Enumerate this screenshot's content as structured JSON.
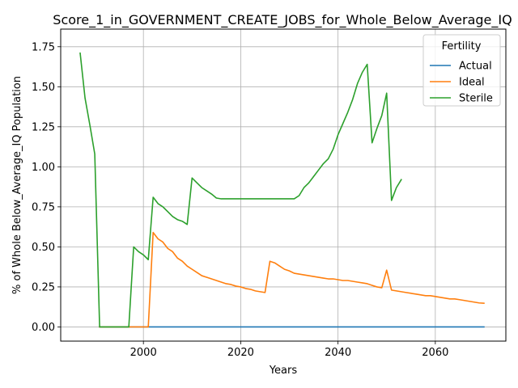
{
  "chart_data": {
    "type": "line",
    "title": "Score_1_in_GOVERNMENT_CREATE_JOBS_for_Whole_Below_Average_IQ",
    "xlabel": "Years",
    "ylabel": "% of Whole Below_Average_IQ Population",
    "xlim": [
      1983,
      2074.5
    ],
    "ylim": [
      -0.0886,
      1.86
    ],
    "x_ticks": [
      2000,
      2020,
      2040,
      2060
    ],
    "x_tick_labels": [
      "2000",
      "2020",
      "2040",
      "2060"
    ],
    "y_ticks": [
      0.0,
      0.25,
      0.5,
      0.75,
      1.0,
      1.25,
      1.5,
      1.75
    ],
    "y_tick_labels": [
      "0.00",
      "0.25",
      "0.50",
      "0.75",
      "1.00",
      "1.25",
      "1.50",
      "1.75"
    ],
    "grid": true,
    "legend": {
      "title": "Fertility",
      "placement": "top-right"
    },
    "series": [
      {
        "name": "Actual",
        "color": "#1f77b4",
        "points": [
          [
            1991,
            0.0
          ],
          [
            2070,
            0.0
          ]
        ]
      },
      {
        "name": "Ideal",
        "color": "#ff7f0e",
        "points": [
          [
            1991,
            0.0
          ],
          [
            2000,
            0.0
          ],
          [
            2001,
            0.0
          ],
          [
            2002,
            0.59
          ],
          [
            2003,
            0.55
          ],
          [
            2004,
            0.53
          ],
          [
            2005,
            0.49
          ],
          [
            2006,
            0.47
          ],
          [
            2007,
            0.43
          ],
          [
            2008,
            0.41
          ],
          [
            2009,
            0.38
          ],
          [
            2010,
            0.36
          ],
          [
            2011,
            0.34
          ],
          [
            2012,
            0.32
          ],
          [
            2013,
            0.31
          ],
          [
            2014,
            0.3
          ],
          [
            2015,
            0.29
          ],
          [
            2016,
            0.28
          ],
          [
            2017,
            0.27
          ],
          [
            2018,
            0.265
          ],
          [
            2019,
            0.255
          ],
          [
            2020,
            0.25
          ],
          [
            2021,
            0.24
          ],
          [
            2022,
            0.235
          ],
          [
            2023,
            0.225
          ],
          [
            2024,
            0.22
          ],
          [
            2025,
            0.215
          ],
          [
            2026,
            0.41
          ],
          [
            2027,
            0.4
          ],
          [
            2028,
            0.38
          ],
          [
            2029,
            0.36
          ],
          [
            2030,
            0.35
          ],
          [
            2031,
            0.335
          ],
          [
            2032,
            0.33
          ],
          [
            2033,
            0.325
          ],
          [
            2034,
            0.32
          ],
          [
            2035,
            0.315
          ],
          [
            2036,
            0.31
          ],
          [
            2037,
            0.305
          ],
          [
            2038,
            0.3
          ],
          [
            2039,
            0.3
          ],
          [
            2040,
            0.295
          ],
          [
            2041,
            0.29
          ],
          [
            2042,
            0.29
          ],
          [
            2043,
            0.285
          ],
          [
            2044,
            0.28
          ],
          [
            2045,
            0.275
          ],
          [
            2046,
            0.27
          ],
          [
            2047,
            0.26
          ],
          [
            2048,
            0.25
          ],
          [
            2049,
            0.245
          ],
          [
            2050,
            0.355
          ],
          [
            2051,
            0.23
          ],
          [
            2052,
            0.225
          ],
          [
            2053,
            0.22
          ],
          [
            2054,
            0.215
          ],
          [
            2055,
            0.21
          ],
          [
            2056,
            0.205
          ],
          [
            2057,
            0.2
          ],
          [
            2058,
            0.195
          ],
          [
            2059,
            0.195
          ],
          [
            2060,
            0.19
          ],
          [
            2061,
            0.185
          ],
          [
            2062,
            0.18
          ],
          [
            2063,
            0.175
          ],
          [
            2064,
            0.175
          ],
          [
            2065,
            0.17
          ],
          [
            2066,
            0.165
          ],
          [
            2067,
            0.16
          ],
          [
            2068,
            0.155
          ],
          [
            2069,
            0.15
          ],
          [
            2070,
            0.148
          ]
        ]
      },
      {
        "name": "Sterile",
        "color": "#2ca02c",
        "points": [
          [
            1987,
            1.71
          ],
          [
            1988,
            1.43
          ],
          [
            1989,
            1.26
          ],
          [
            1990,
            1.08
          ],
          [
            1991,
            0.0
          ],
          [
            1996,
            0.0
          ],
          [
            1997,
            0.0
          ],
          [
            1998,
            0.5
          ],
          [
            1999,
            0.47
          ],
          [
            2000,
            0.45
          ],
          [
            2001,
            0.42
          ],
          [
            2002,
            0.81
          ],
          [
            2003,
            0.77
          ],
          [
            2004,
            0.75
          ],
          [
            2005,
            0.72
          ],
          [
            2006,
            0.69
          ],
          [
            2007,
            0.67
          ],
          [
            2008,
            0.66
          ],
          [
            2009,
            0.64
          ],
          [
            2010,
            0.93
          ],
          [
            2011,
            0.9
          ],
          [
            2012,
            0.87
          ],
          [
            2013,
            0.85
          ],
          [
            2014,
            0.83
          ],
          [
            2015,
            0.805
          ],
          [
            2016,
            0.8
          ],
          [
            2020,
            0.8
          ],
          [
            2025,
            0.8
          ],
          [
            2031,
            0.8
          ],
          [
            2032,
            0.82
          ],
          [
            2033,
            0.87
          ],
          [
            2034,
            0.9
          ],
          [
            2035,
            0.94
          ],
          [
            2036,
            0.98
          ],
          [
            2037,
            1.02
          ],
          [
            2038,
            1.05
          ],
          [
            2039,
            1.11
          ],
          [
            2040,
            1.2
          ],
          [
            2041,
            1.27
          ],
          [
            2042,
            1.34
          ],
          [
            2043,
            1.42
          ],
          [
            2044,
            1.52
          ],
          [
            2045,
            1.59
          ],
          [
            2046,
            1.64
          ],
          [
            2047,
            1.15
          ],
          [
            2048,
            1.24
          ],
          [
            2049,
            1.32
          ],
          [
            2050,
            1.46
          ],
          [
            2051,
            0.79
          ],
          [
            2052,
            0.87
          ],
          [
            2053,
            0.92
          ]
        ]
      }
    ]
  }
}
